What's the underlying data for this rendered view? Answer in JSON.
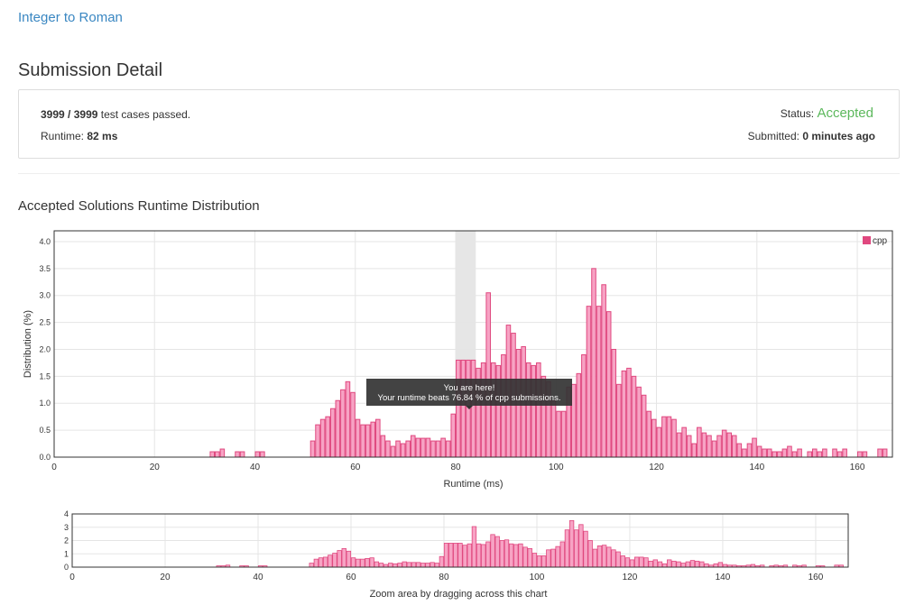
{
  "header": {
    "problem_title": "Integer to Roman",
    "page_title": "Submission Detail"
  },
  "submission": {
    "passed": "3999",
    "separator": " / ",
    "total": "3999",
    "passed_suffix": " test cases passed.",
    "runtime_label": "Runtime: ",
    "runtime_value": "82 ms",
    "status_label": "Status: ",
    "status_value": "Accepted",
    "submitted_label": "Submitted: ",
    "submitted_value": "0 minutes ago"
  },
  "section_title": "Accepted Solutions Runtime Distribution",
  "tooltip": {
    "line1": "You are here!",
    "line2": "Your runtime beats 76.84 % of cpp submissions."
  },
  "colors": {
    "bar_fill": "#f7a3c4",
    "bar_stroke": "#e0487f",
    "highlight": "#e6e6e6",
    "accent_link": "#3a87c2",
    "accepted": "#5cb85c"
  },
  "chart_data": [
    {
      "type": "bar",
      "title": "",
      "xlabel": "Runtime (ms)",
      "ylabel": "Distribution (%)",
      "xlim": [
        0,
        167
      ],
      "ylim": [
        0,
        4.2
      ],
      "xticks": [
        0,
        20,
        40,
        60,
        80,
        100,
        120,
        140,
        160
      ],
      "yticks": [
        "0.0",
        "0.5",
        "1.0",
        "1.5",
        "2.0",
        "2.5",
        "3.0",
        "3.5",
        "4.0"
      ],
      "highlight_range": [
        80,
        84
      ],
      "grid": true,
      "legend": {
        "position": "top-right",
        "label": "cpp"
      },
      "series": [
        {
          "name": "cpp",
          "x": [
            31,
            32,
            33,
            36,
            37,
            40,
            41,
            51,
            52,
            53,
            54,
            55,
            56,
            57,
            58,
            59,
            60,
            61,
            62,
            63,
            64,
            65,
            66,
            67,
            68,
            69,
            70,
            71,
            72,
            73,
            74,
            75,
            76,
            77,
            78,
            79,
            80,
            81,
            82,
            83,
            84,
            85,
            86,
            87,
            88,
            89,
            90,
            91,
            92,
            93,
            94,
            95,
            96,
            97,
            98,
            99,
            100,
            101,
            102,
            103,
            104,
            105,
            106,
            107,
            108,
            109,
            110,
            111,
            112,
            113,
            114,
            115,
            116,
            117,
            118,
            119,
            120,
            121,
            122,
            123,
            124,
            125,
            126,
            127,
            128,
            129,
            130,
            131,
            132,
            133,
            134,
            135,
            136,
            137,
            138,
            139,
            140,
            141,
            142,
            143,
            144,
            145,
            146,
            147,
            148,
            150,
            151,
            152,
            153,
            155,
            156,
            157,
            160,
            161,
            164,
            165
          ],
          "values": [
            0.1,
            0.1,
            0.15,
            0.1,
            0.1,
            0.1,
            0.1,
            0.3,
            0.6,
            0.7,
            0.75,
            0.9,
            1.05,
            1.25,
            1.4,
            1.2,
            0.7,
            0.6,
            0.6,
            0.65,
            0.7,
            0.4,
            0.3,
            0.2,
            0.3,
            0.25,
            0.3,
            0.4,
            0.35,
            0.35,
            0.35,
            0.3,
            0.3,
            0.35,
            0.3,
            0.8,
            1.8,
            1.8,
            1.8,
            1.8,
            1.65,
            1.75,
            3.05,
            1.75,
            1.7,
            1.9,
            2.45,
            2.3,
            2.0,
            2.05,
            1.75,
            1.7,
            1.75,
            1.5,
            1.4,
            1.05,
            0.85,
            0.85,
            1.3,
            1.35,
            1.55,
            1.9,
            2.8,
            3.5,
            2.8,
            3.2,
            2.7,
            2.0,
            1.35,
            1.6,
            1.65,
            1.5,
            1.3,
            1.15,
            0.85,
            0.7,
            0.55,
            0.75,
            0.75,
            0.7,
            0.45,
            0.55,
            0.4,
            0.25,
            0.55,
            0.45,
            0.4,
            0.3,
            0.4,
            0.5,
            0.45,
            0.4,
            0.25,
            0.15,
            0.25,
            0.35,
            0.2,
            0.15,
            0.15,
            0.1,
            0.1,
            0.15,
            0.2,
            0.1,
            0.15,
            0.1,
            0.15,
            0.1,
            0.15,
            0.15,
            0.1,
            0.15,
            0.1,
            0.1,
            0.15,
            0.15
          ]
        }
      ]
    },
    {
      "type": "bar",
      "title": "",
      "xlabel": "Zoom area by dragging across this chart",
      "ylabel": "",
      "xlim": [
        0,
        167
      ],
      "ylim": [
        0,
        4
      ],
      "xticks": [
        0,
        20,
        40,
        60,
        80,
        100,
        120,
        140,
        160
      ],
      "yticks": [
        "0",
        "1",
        "2",
        "3",
        "4"
      ],
      "grid": true
    }
  ]
}
